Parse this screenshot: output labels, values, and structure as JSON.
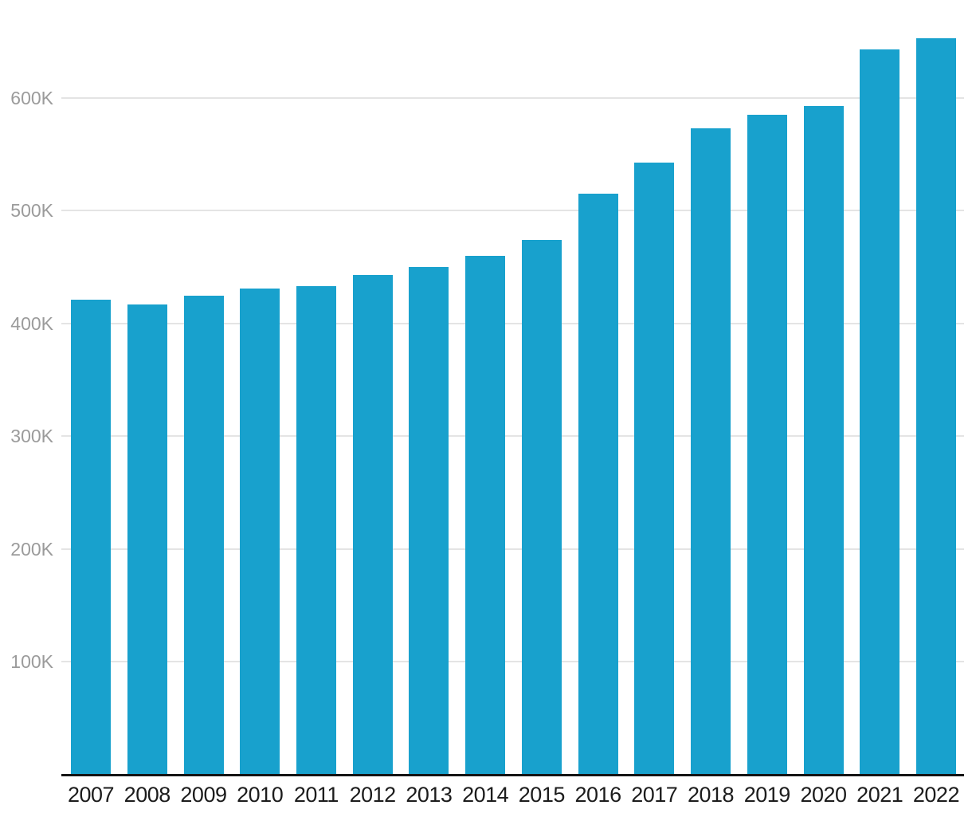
{
  "chart": {
    "background_color": "#ffffff",
    "bar_color": "#18a1cd",
    "grid_color": "#e4e4e4",
    "axis_line_color": "#141414",
    "y_label_color": "#9b9b9b",
    "x_label_color": "#1c1c1c"
  },
  "chart_data": {
    "type": "bar",
    "title": "",
    "xlabel": "",
    "ylabel": "",
    "legend": "none",
    "grid": "horizontal",
    "categories": [
      "2007",
      "2008",
      "2009",
      "2010",
      "2011",
      "2012",
      "2013",
      "2014",
      "2015",
      "2016",
      "2017",
      "2018",
      "2019",
      "2020",
      "2021",
      "2022"
    ],
    "values": [
      421000,
      417000,
      425000,
      431000,
      433000,
      443000,
      450000,
      460000,
      474000,
      515000,
      543000,
      573000,
      585000,
      593000,
      643000,
      653000
    ],
    "ylim": [
      0,
      660000
    ],
    "yticks": [
      {
        "value": 100000,
        "label": "100K"
      },
      {
        "value": 200000,
        "label": "200K"
      },
      {
        "value": 300000,
        "label": "300K"
      },
      {
        "value": 400000,
        "label": "400K"
      },
      {
        "value": 500000,
        "label": "500K"
      },
      {
        "value": 600000,
        "label": "600K"
      }
    ]
  }
}
